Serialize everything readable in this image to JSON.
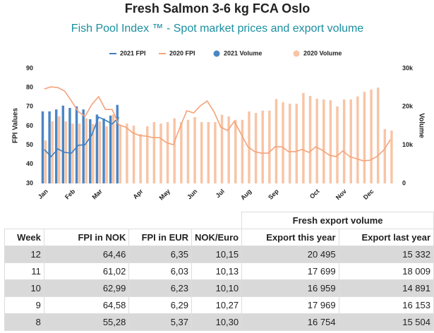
{
  "chart_data": {
    "type": "combo",
    "title": "Fresh Salmon 3-6 kg FCA Oslo",
    "subtitle": "Fish Pool Index ™ - Spot market prices and export volume",
    "ylabel": "FPI Values",
    "y2label": "Volume",
    "categories": [
      "Jan",
      null,
      null,
      null,
      "Feb",
      null,
      null,
      null,
      "Mar",
      null,
      null,
      null,
      null,
      null,
      "Apr",
      null,
      null,
      null,
      "May",
      null,
      null,
      null,
      "Jun",
      null,
      null,
      null,
      "Jul",
      null,
      null,
      null,
      "Aug",
      null,
      null,
      null,
      "Sep",
      null,
      null,
      null,
      null,
      null,
      "Oct",
      null,
      null,
      null,
      "Nov",
      null,
      null,
      null,
      "Dec",
      null,
      null,
      null
    ],
    "ylim": [
      30,
      90
    ],
    "yticks": [
      30,
      40,
      50,
      60,
      70,
      80,
      90
    ],
    "y2lim": [
      0,
      30000
    ],
    "y2ticks": [
      0,
      {
        "value": 10000,
        "label": "10k"
      },
      {
        "value": 20000,
        "label": "20k"
      },
      {
        "value": 30000,
        "label": "30k"
      }
    ],
    "grid": false,
    "legend": "top",
    "series": [
      {
        "name": "2021 FPI",
        "type": "line",
        "color": "#3d7fc1",
        "values": [
          47.7,
          44,
          48,
          46.2,
          45.8,
          49.9,
          50.2,
          55.28,
          64.58,
          62.99,
          61.02,
          64.46,
          null,
          null,
          null,
          null,
          null,
          null,
          null,
          null,
          null,
          null,
          null,
          null,
          null,
          null,
          null,
          null,
          null,
          null,
          null,
          null,
          null,
          null,
          null,
          null,
          null,
          null,
          null,
          null,
          null,
          null,
          null,
          null,
          null,
          null,
          null,
          null,
          null,
          null,
          null,
          null
        ]
      },
      {
        "name": "2020 FPI",
        "type": "line",
        "color": "#f5a37a",
        "values": [
          79.3,
          80.4,
          80,
          78.2,
          73,
          67.5,
          65,
          71.2,
          75.3,
          68.6,
          68.6,
          60.5,
          59.4,
          56.5,
          55,
          54.7,
          53.9,
          53.9,
          51.3,
          50.2,
          59.4,
          67.9,
          66.8,
          70.5,
          73,
          67.5,
          59.4,
          57.6,
          62.4,
          55.8,
          49.1,
          46.6,
          45.8,
          45.8,
          49.1,
          49.1,
          46.6,
          46.6,
          47.7,
          46.2,
          49.1,
          47.3,
          44.7,
          44,
          47,
          44,
          42.9,
          41.8,
          42.1,
          44,
          47.3,
          52.8
        ]
      },
      {
        "name": "2021 Volume",
        "type": "bar",
        "axis": "y2",
        "color": "#4a86c5",
        "values": [
          18800,
          18800,
          19300,
          20300,
          19700,
          20100,
          19300,
          16754,
          17969,
          16959,
          17699,
          20495,
          null,
          null,
          null,
          null,
          null,
          null,
          null,
          null,
          null,
          null,
          null,
          null,
          null,
          null,
          null,
          null,
          null,
          null,
          null,
          null,
          null,
          null,
          null,
          null,
          null,
          null,
          null,
          null,
          null,
          null,
          null,
          null,
          null,
          null,
          null,
          null,
          null,
          null,
          null,
          null
        ]
      },
      {
        "name": "2020 Volume",
        "type": "bar",
        "axis": "y2",
        "color": "#f8c4a5",
        "values": [
          11200,
          16200,
          17500,
          16200,
          15600,
          15600,
          17000,
          15504,
          16153,
          14891,
          18009,
          15332,
          15600,
          15100,
          12900,
          14900,
          16000,
          15600,
          16000,
          17000,
          16000,
          16600,
          17300,
          16000,
          16000,
          16000,
          17900,
          17500,
          16600,
          16600,
          18800,
          18400,
          19000,
          19000,
          22000,
          21200,
          20800,
          20800,
          23600,
          22800,
          22100,
          21900,
          21700,
          20100,
          21900,
          21900,
          22700,
          23900,
          24500,
          25000,
          14200,
          13800
        ]
      }
    ]
  },
  "table": {
    "group_header": "Fresh export volume",
    "columns": [
      "Week",
      "FPI in NOK",
      "FPI in EUR",
      "NOK/Euro",
      "Export this year",
      "Export last year"
    ],
    "rows": [
      [
        "12",
        "64,46",
        "6,35",
        "10,15",
        "20 495",
        "15 332"
      ],
      [
        "11",
        "61,02",
        "6,03",
        "10,13",
        "17 699",
        "18 009"
      ],
      [
        "10",
        "62,99",
        "6,23",
        "10,10",
        "16 959",
        "14 891"
      ],
      [
        "9",
        "64,58",
        "6,29",
        "10,27",
        "17 969",
        "16 153"
      ],
      [
        "8",
        "55,28",
        "5,37",
        "10,30",
        "16 754",
        "15 504"
      ]
    ]
  }
}
